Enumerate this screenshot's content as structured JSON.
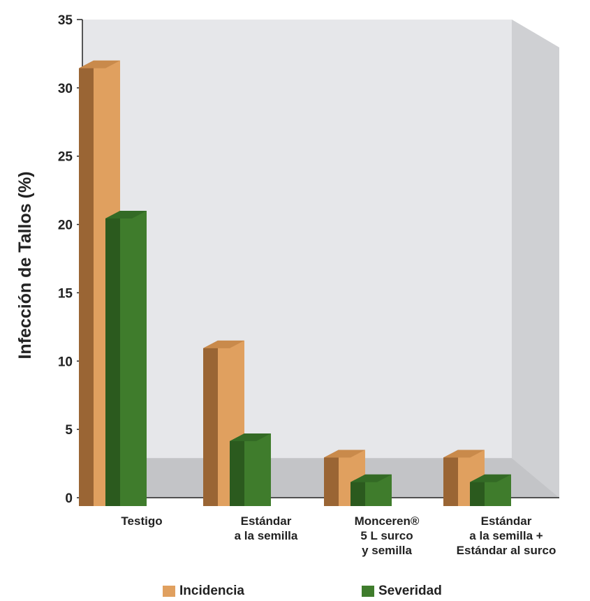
{
  "chart_data": {
    "type": "bar",
    "title": "",
    "ylabel": "Infección de Tallos (%)",
    "xlabel": "",
    "ylim": [
      0,
      35
    ],
    "yticks": [
      0,
      5,
      10,
      15,
      20,
      25,
      30,
      35
    ],
    "categories": [
      [
        "Testigo"
      ],
      [
        "Estándar",
        "a la semilla"
      ],
      [
        "Monceren®",
        "5 L surco",
        "y semilla"
      ],
      [
        "Estándar",
        "a la semilla +",
        "Estándar al surco"
      ]
    ],
    "series": [
      {
        "name": "Incidencia",
        "values": [
          32,
          11.5,
          3.5,
          3.5
        ]
      },
      {
        "name": "Severidad",
        "values": [
          21,
          4.7,
          1.7,
          1.7
        ]
      }
    ],
    "legend_position": "bottom",
    "grid": false,
    "style": "3d",
    "colors": {
      "incidencia_front": "#e0a05f",
      "incidencia_side": "#9a6534",
      "incidencia_top": "#c98a4b",
      "severidad_front": "#3f7c2c",
      "severidad_side": "#2b5a1e",
      "severidad_top": "#336a25",
      "back_wall": "#e6e7ea",
      "side_wall": "#cfd0d3",
      "floor": "#c3c4c7"
    }
  },
  "legend": {
    "incidencia_label": "Incidencia",
    "severidad_label": "Severidad"
  }
}
